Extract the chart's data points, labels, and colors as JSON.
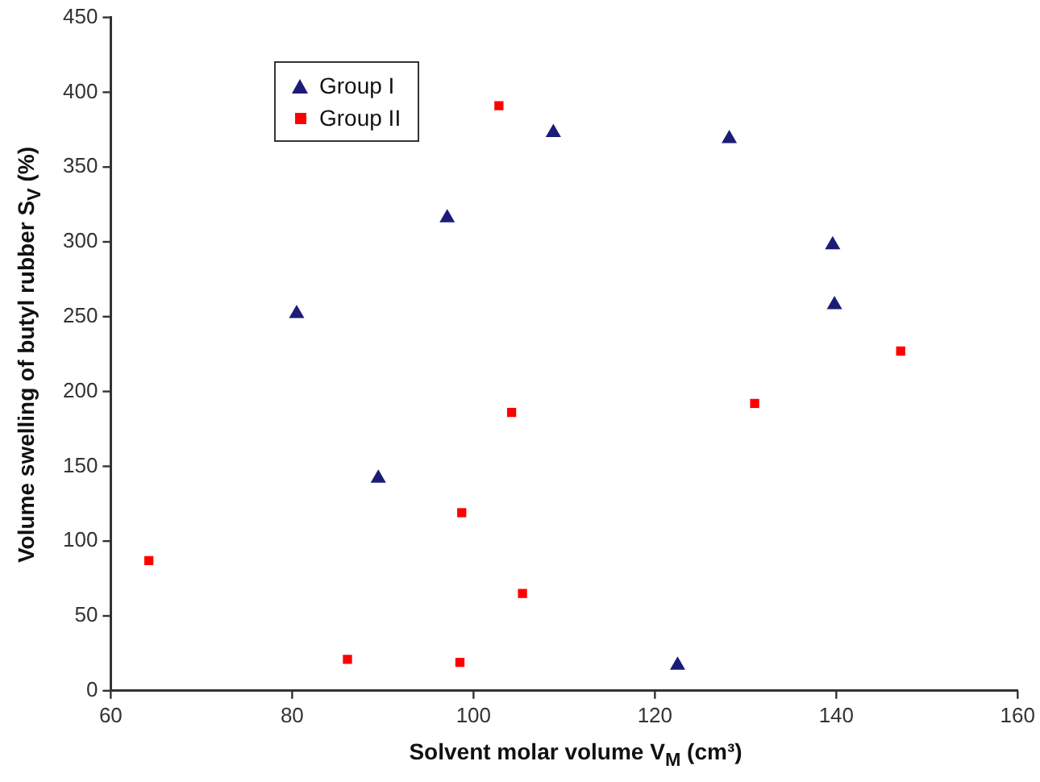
{
  "chart_data": {
    "type": "scatter",
    "xlabel": "Solvent molar volume V$_{M}$ (cm³)",
    "ylabel": "Volume swelling of butyl rubber S$_{V}$ (%)",
    "xlim": [
      60,
      160
    ],
    "xticks": [
      60,
      80,
      100,
      120,
      140,
      160
    ],
    "ylim": [
      0,
      450
    ],
    "yticks": [
      0,
      50,
      100,
      150,
      200,
      250,
      300,
      350,
      400,
      450
    ],
    "grid": false,
    "legend": "top left",
    "series": [
      {
        "name": "Group I",
        "color": "#1c1c78",
        "marker": "triangle",
        "x": [
          80.5,
          89.5,
          97.1,
          108.8,
          128.2,
          139.6,
          139.8,
          122.5
        ],
        "values": [
          252,
          142,
          316,
          373,
          369,
          298,
          258,
          17
        ]
      },
      {
        "name": "Group II",
        "color": "#ff0000",
        "marker": "square",
        "x": [
          64.2,
          86.1,
          98.7,
          98.5,
          102.8,
          104.2,
          105.4,
          131.0,
          147.1
        ],
        "values": [
          87,
          21,
          119,
          19,
          391,
          186,
          65,
          192,
          227
        ]
      }
    ]
  }
}
